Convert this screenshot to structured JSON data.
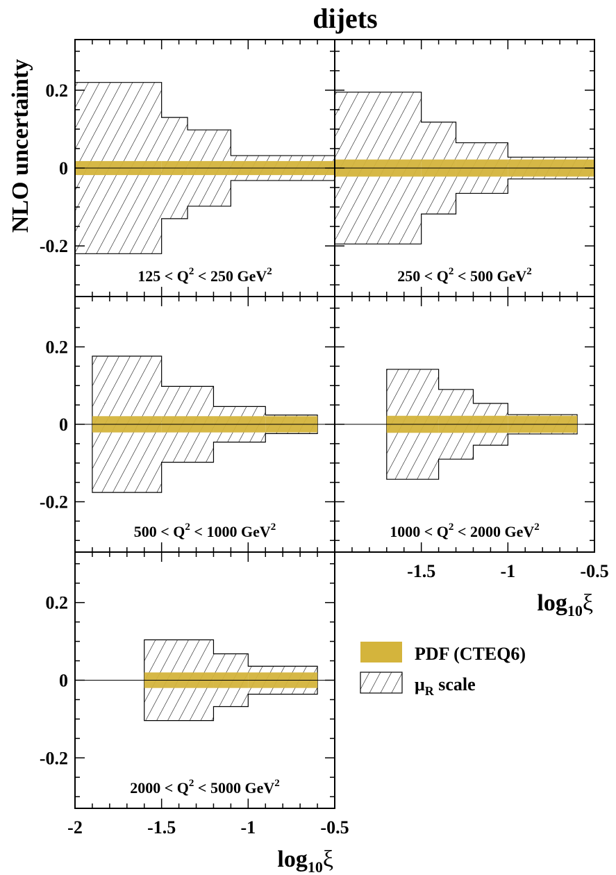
{
  "chart_data": {
    "type": "area",
    "title": "dijets",
    "ylabel": "NLO uncertainty",
    "xlabel_base": "log",
    "xlabel_sub": "10",
    "xlabel_sym": "ξ",
    "xlim": [
      -2,
      -0.5
    ],
    "ylim": [
      -0.33,
      0.33
    ],
    "xticks": [
      -2,
      -1.5,
      -1,
      -0.5
    ],
    "xtick_labels": [
      "-2",
      "-1.5",
      "-1",
      "-0.5"
    ],
    "yticks": [
      -0.2,
      0,
      0.2
    ],
    "ytick_labels": [
      "-0.2",
      "0",
      "0.2"
    ],
    "colors": {
      "pdf": "#d4b43c",
      "hatch": "#000000"
    },
    "legend": {
      "placement": "right, below panels",
      "entries": [
        {
          "key": "pdf",
          "label": "PDF (CTEQ6)"
        },
        {
          "key": "scale",
          "label_main": "μ",
          "label_sub": "R",
          "label_rest": " scale"
        }
      ]
    },
    "panels": [
      {
        "label_pre": "125 < Q",
        "label_sup1": "2",
        "label_mid": " < 250 GeV",
        "label_sup2": "2",
        "bins": [
          {
            "x0": -2.0,
            "x1": -1.5,
            "scale": 0.22,
            "pdf": 0.018
          },
          {
            "x0": -1.5,
            "x1": -1.35,
            "scale": 0.13,
            "pdf": 0.018
          },
          {
            "x0": -1.35,
            "x1": -1.1,
            "scale": 0.098,
            "pdf": 0.018
          },
          {
            "x0": -1.1,
            "x1": -0.5,
            "scale": 0.032,
            "pdf": 0.018
          }
        ]
      },
      {
        "label_pre": "250 < Q",
        "label_sup1": "2",
        "label_mid": " < 500 GeV",
        "label_sup2": "2",
        "bins": [
          {
            "x0": -2.0,
            "x1": -1.5,
            "scale": 0.195,
            "pdf": 0.022
          },
          {
            "x0": -1.5,
            "x1": -1.3,
            "scale": 0.118,
            "pdf": 0.022
          },
          {
            "x0": -1.3,
            "x1": -1.0,
            "scale": 0.065,
            "pdf": 0.022
          },
          {
            "x0": -1.0,
            "x1": -0.5,
            "scale": 0.028,
            "pdf": 0.022
          }
        ]
      },
      {
        "label_pre": "500 < Q",
        "label_sup1": "2",
        "label_mid": " < 1000 GeV",
        "label_sup2": "2",
        "bins": [
          {
            "x0": -1.9,
            "x1": -1.5,
            "scale": 0.176,
            "pdf": 0.021
          },
          {
            "x0": -1.5,
            "x1": -1.2,
            "scale": 0.098,
            "pdf": 0.021
          },
          {
            "x0": -1.2,
            "x1": -0.9,
            "scale": 0.046,
            "pdf": 0.021
          },
          {
            "x0": -0.9,
            "x1": -0.6,
            "scale": 0.024,
            "pdf": 0.021
          }
        ]
      },
      {
        "label_pre": "1000 < Q",
        "label_sup1": "2",
        "label_mid": " < 2000 GeV",
        "label_sup2": "2",
        "bins": [
          {
            "x0": -1.7,
            "x1": -1.4,
            "scale": 0.142,
            "pdf": 0.022
          },
          {
            "x0": -1.4,
            "x1": -1.2,
            "scale": 0.09,
            "pdf": 0.022
          },
          {
            "x0": -1.2,
            "x1": -1.0,
            "scale": 0.054,
            "pdf": 0.022
          },
          {
            "x0": -1.0,
            "x1": -0.6,
            "scale": 0.025,
            "pdf": 0.022
          }
        ]
      },
      {
        "label_pre": "2000 < Q",
        "label_sup1": "2",
        "label_mid": " < 5000 GeV",
        "label_sup2": "2",
        "bins": [
          {
            "x0": -1.6,
            "x1": -1.2,
            "scale": 0.104,
            "pdf": 0.02
          },
          {
            "x0": -1.2,
            "x1": -1.0,
            "scale": 0.068,
            "pdf": 0.02
          },
          {
            "x0": -1.0,
            "x1": -0.6,
            "scale": 0.036,
            "pdf": 0.02
          }
        ]
      }
    ]
  }
}
